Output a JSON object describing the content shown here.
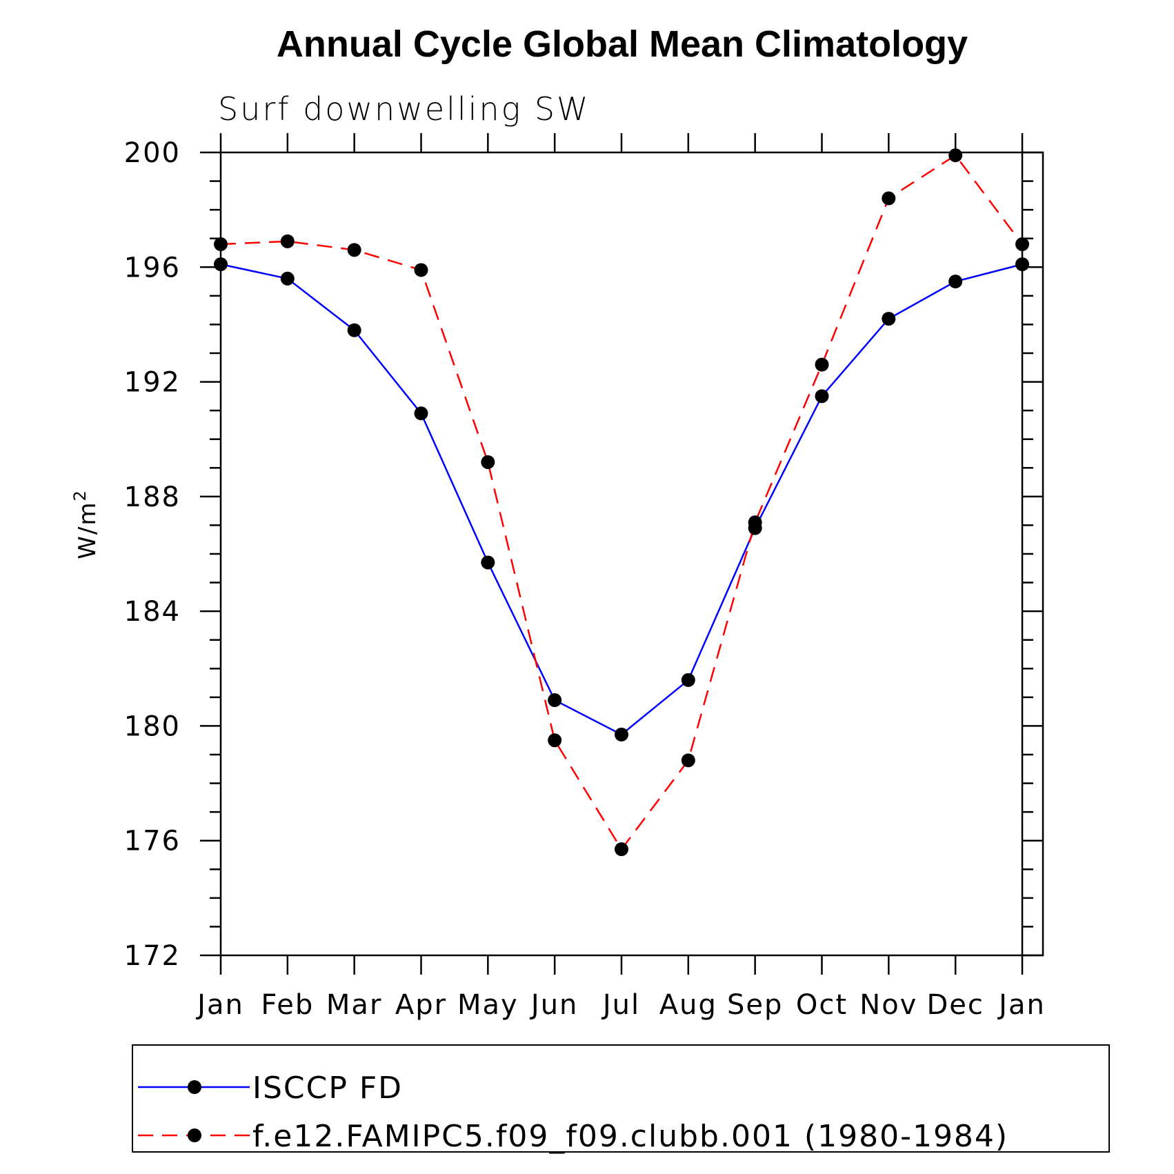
{
  "chart_data": {
    "type": "line",
    "title": "Annual Cycle Global Mean Climatology",
    "subtitle": "Surf downwelling SW",
    "ylabel": "W/m",
    "ylabel_superscript": "2",
    "xlabel": "",
    "categories": [
      "Jan",
      "Feb",
      "Mar",
      "Apr",
      "May",
      "Jun",
      "Jul",
      "Aug",
      "Sep",
      "Oct",
      "Nov",
      "Dec",
      "Jan"
    ],
    "ylim": [
      172,
      200
    ],
    "yticks": [
      172,
      176,
      180,
      184,
      188,
      192,
      196,
      200
    ],
    "series": [
      {
        "name": "ISCCP FD",
        "color": "#0000ff",
        "dash": "solid",
        "values": [
          196.1,
          195.6,
          193.8,
          190.9,
          185.7,
          180.9,
          179.7,
          181.6,
          186.9,
          191.5,
          194.2,
          195.5,
          196.1
        ]
      },
      {
        "name": "f.e12.FAMIPC5.f09_f09.clubb.001 (1980-1984)",
        "color": "#ff0000",
        "dash": "dashed",
        "values": [
          196.8,
          196.9,
          196.6,
          195.9,
          189.2,
          179.5,
          175.7,
          178.8,
          187.1,
          192.6,
          198.4,
          199.9,
          196.8
        ]
      }
    ],
    "legend_position": "bottom",
    "grid": false
  }
}
